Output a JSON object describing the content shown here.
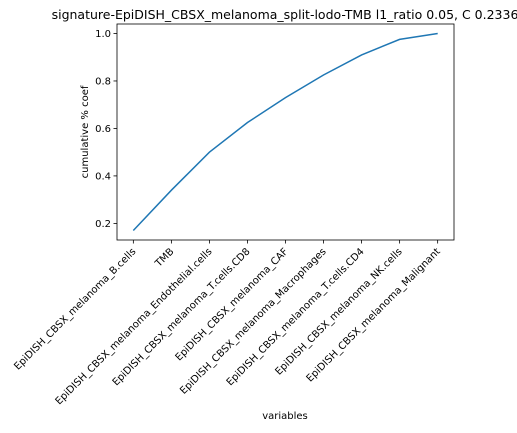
{
  "chart_data": {
    "type": "line",
    "title": "signature-EpiDISH_CBSX_melanoma_split-lodo-TMB l1_ratio 0.05, C 0.2336",
    "xlabel": "variables",
    "ylabel": "cumulative % coef",
    "categories": [
      "EpiDISH_CBSX_melanoma_B.cells",
      "TMB",
      "EpiDISH_CBSX_melanoma_Endothelial.cells",
      "EpiDISH_CBSX_melanoma_T.cells.CD8",
      "EpiDISH_CBSX_melanoma_CAF",
      "EpiDISH_CBSX_melanoma_Macrophages",
      "EpiDISH_CBSX_melanoma_T.cells.CD4",
      "EpiDISH_CBSX_melanoma_NK.cells",
      "EpiDISH_CBSX_melanoma_Malignant"
    ],
    "series": [
      {
        "values": [
          0.17,
          0.34,
          0.5,
          0.625,
          0.73,
          0.825,
          0.91,
          0.975,
          1.0
        ],
        "color": "#1f77b4"
      }
    ],
    "yticks": [
      0.2,
      0.4,
      0.6,
      0.8,
      1.0
    ],
    "ytick_labels": [
      "0.2",
      "0.4",
      "0.6",
      "0.8",
      "1.0"
    ],
    "ylim": [
      0.13,
      1.04
    ],
    "grid": false,
    "legend": "none"
  }
}
